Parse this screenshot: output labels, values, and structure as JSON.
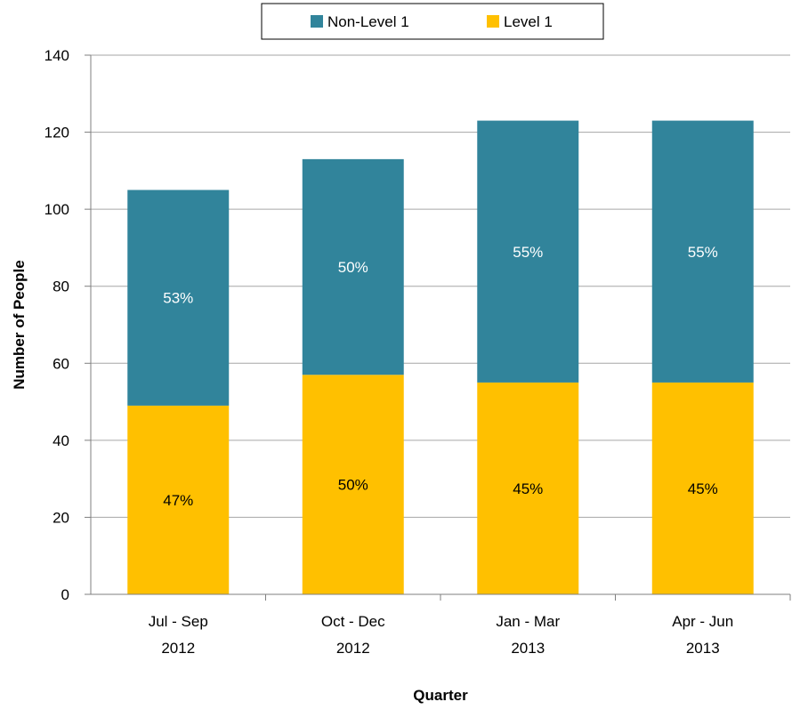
{
  "chart_data": {
    "type": "bar",
    "stacked": true,
    "categories": [
      [
        "Jul - Sep",
        "2012"
      ],
      [
        "Oct - Dec",
        "2012"
      ],
      [
        "Jan - Mar",
        "2013"
      ],
      [
        "Apr - Jun",
        "2013"
      ]
    ],
    "series": [
      {
        "name": "Level 1",
        "color": "#FFC000",
        "label_color": "#000000",
        "values": [
          49,
          57,
          55,
          55
        ],
        "labels": [
          "47%",
          "50%",
          "45%",
          "45%"
        ]
      },
      {
        "name": "Non-Level 1",
        "color": "#31849B",
        "label_color": "#FFFFFF",
        "values": [
          56,
          56,
          68,
          68
        ],
        "labels": [
          "53%",
          "50%",
          "55%",
          "55%"
        ]
      }
    ],
    "legend_order": [
      "Non-Level 1",
      "Level 1"
    ],
    "legend_position": "top",
    "xlabel": "Quarter",
    "ylabel": "Number of People",
    "ylim": [
      0,
      140
    ],
    "yticks": [
      0,
      20,
      40,
      60,
      80,
      100,
      120,
      140
    ],
    "grid": true,
    "gridline_color": "#A6A6A6",
    "axis_color": "#7F7F7F"
  }
}
